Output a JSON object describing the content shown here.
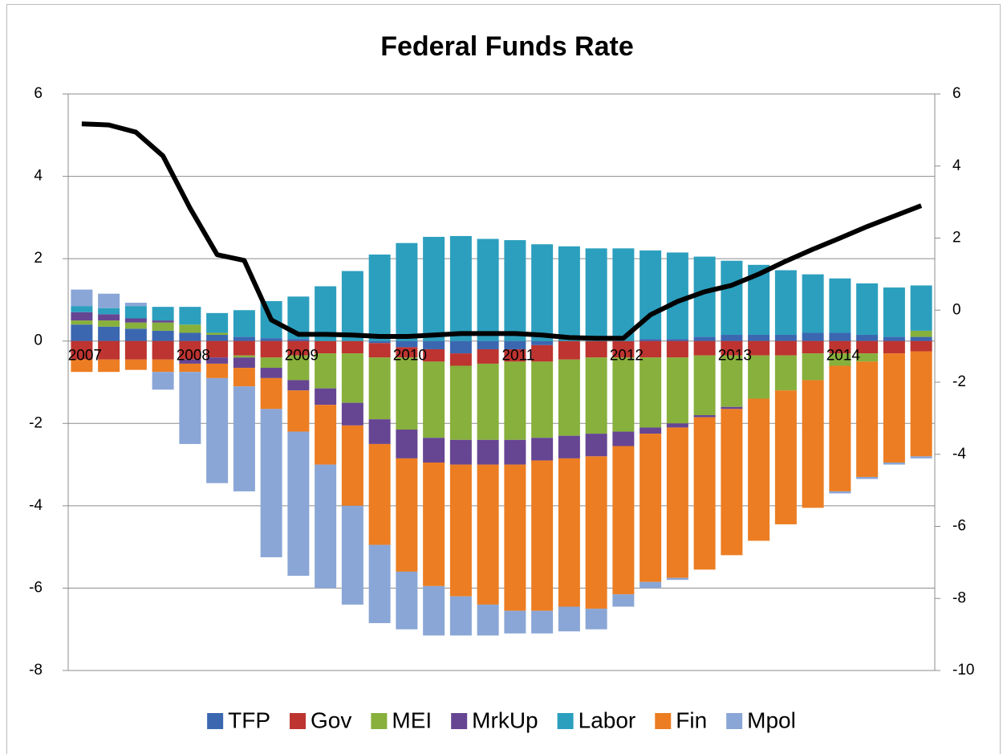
{
  "chart_data": {
    "type": "bar",
    "stacked": true,
    "title": "Federal Funds Rate",
    "categories": [
      "2007",
      null,
      null,
      null,
      "2008",
      null,
      null,
      null,
      "2009",
      null,
      null,
      null,
      "2010",
      null,
      null,
      null,
      "2011",
      null,
      null,
      null,
      "2012",
      null,
      null,
      null,
      "2013",
      null,
      null,
      null,
      "2014",
      null,
      null,
      null
    ],
    "series": [
      {
        "name": "TFP",
        "color": "#3b67b1",
        "values": [
          0.4,
          0.35,
          0.3,
          0.25,
          0.2,
          0.15,
          0.1,
          0.07,
          0.05,
          0,
          0,
          -0.05,
          -0.15,
          -0.2,
          -0.3,
          -0.2,
          -0.2,
          -0.1,
          0,
          0,
          0,
          0.05,
          0.05,
          0.1,
          0.15,
          0.15,
          0.15,
          0.2,
          0.2,
          0.15,
          0.1,
          0.1
        ]
      },
      {
        "name": "Gov",
        "color": "#bd3430",
        "values": [
          -0.45,
          -0.45,
          -0.45,
          -0.45,
          -0.45,
          -0.4,
          -0.35,
          -0.4,
          -0.35,
          -0.3,
          -0.3,
          -0.35,
          -0.25,
          -0.3,
          -0.3,
          -0.35,
          -0.3,
          -0.4,
          -0.45,
          -0.4,
          -0.4,
          -0.4,
          -0.4,
          -0.35,
          -0.35,
          -0.35,
          -0.35,
          -0.3,
          -0.3,
          -0.3,
          -0.3,
          -0.25
        ]
      },
      {
        "name": "MEI",
        "color": "#87b03c",
        "values": [
          0.1,
          0.15,
          0.15,
          0.2,
          0.2,
          0.05,
          -0.05,
          -0.25,
          -0.6,
          -0.85,
          -1.2,
          -1.5,
          -1.75,
          -1.85,
          -1.8,
          -1.85,
          -1.9,
          -1.85,
          -1.85,
          -1.85,
          -1.8,
          -1.7,
          -1.6,
          -1.45,
          -1.25,
          -1.05,
          -0.85,
          -0.65,
          -0.3,
          -0.2,
          0,
          0.15
        ]
      },
      {
        "name": "MrkUp",
        "color": "#664593",
        "values": [
          0.2,
          0.15,
          0.1,
          0.05,
          -0.1,
          -0.15,
          -0.25,
          -0.25,
          -0.25,
          -0.4,
          -0.55,
          -0.6,
          -0.7,
          -0.6,
          -0.6,
          -0.6,
          -0.6,
          -0.55,
          -0.55,
          -0.55,
          -0.35,
          -0.15,
          -0.1,
          -0.05,
          -0.05,
          0,
          0,
          0,
          0,
          0,
          0,
          0
        ]
      },
      {
        "name": "Labor",
        "color": "#2c9fbe",
        "values": [
          0.15,
          0.15,
          0.3,
          0.33,
          0.43,
          0.48,
          0.65,
          0.9,
          1.03,
          1.33,
          1.7,
          2.1,
          2.38,
          2.53,
          2.55,
          2.48,
          2.45,
          2.35,
          2.3,
          2.25,
          2.25,
          2.15,
          2.1,
          1.95,
          1.8,
          1.7,
          1.57,
          1.42,
          1.32,
          1.25,
          1.2,
          1.1
        ]
      },
      {
        "name": "Fin",
        "color": "#ec7d22",
        "values": [
          -0.3,
          -0.3,
          -0.25,
          -0.3,
          -0.2,
          -0.35,
          -0.45,
          -0.75,
          -1.0,
          -1.45,
          -1.95,
          -2.45,
          -2.75,
          -3.0,
          -3.2,
          -3.4,
          -3.55,
          -3.65,
          -3.6,
          -3.7,
          -3.6,
          -3.6,
          -3.65,
          -3.7,
          -3.55,
          -3.45,
          -3.25,
          -3.1,
          -3.05,
          -2.8,
          -2.65,
          -2.55
        ]
      },
      {
        "name": "Mpol",
        "color": "#8aa6d6",
        "values": [
          0.4,
          0.35,
          0.08,
          -0.43,
          -1.75,
          -2.55,
          -2.55,
          -3.6,
          -3.5,
          -3.0,
          -2.4,
          -1.9,
          -1.4,
          -1.2,
          -0.95,
          -0.75,
          -0.55,
          -0.55,
          -0.6,
          -0.5,
          -0.3,
          -0.15,
          -0.05,
          0,
          0,
          0,
          0,
          0,
          -0.05,
          -0.05,
          -0.05,
          -0.05
        ]
      }
    ],
    "line": {
      "axis": "y2",
      "color": "#000000",
      "values": [
        5.17,
        5.14,
        4.94,
        4.28,
        2.83,
        1.54,
        1.38,
        -0.27,
        -0.67,
        -0.67,
        -0.69,
        -0.73,
        -0.73,
        -0.69,
        -0.65,
        -0.65,
        -0.65,
        -0.69,
        -0.76,
        -0.78,
        -0.78,
        -0.13,
        0.24,
        0.51,
        0.69,
        1.0,
        1.36,
        1.69,
        2.0,
        2.32,
        2.61,
        2.9
      ]
    },
    "ylim": [
      -8,
      6
    ],
    "yticks": [
      -8,
      -6,
      -4,
      -2,
      0,
      2,
      4,
      6
    ],
    "y2lim": [
      -10,
      6
    ],
    "y2ticks": [
      -10,
      -8,
      -6,
      -4,
      -2,
      0,
      2,
      4,
      6
    ],
    "grid": true,
    "legend": "bottom"
  }
}
